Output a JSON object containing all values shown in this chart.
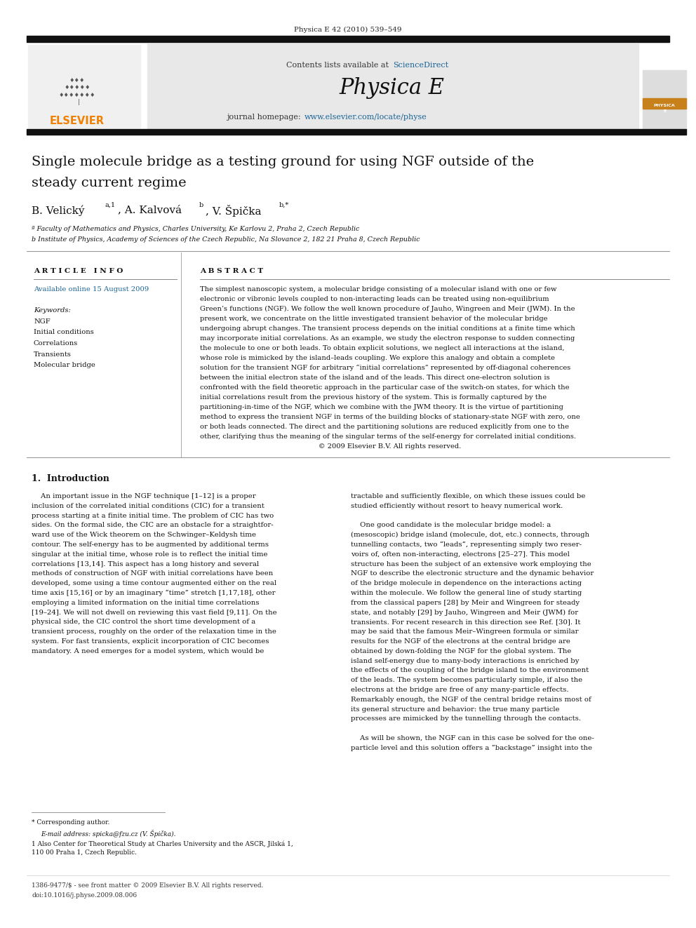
{
  "page_width": 9.92,
  "page_height": 13.23,
  "bg_color": "#ffffff",
  "journal_ref": "Physica E 42 (2010) 539–549",
  "header_bg": "#e8e8e8",
  "contents_text": "Contents lists available at ",
  "sciencedirect_text": "ScienceDirect",
  "sciencedirect_color": "#1a6496",
  "journal_name": "Physica E",
  "homepage_text": "journal homepage: ",
  "homepage_url": "www.elsevier.com/locate/physe",
  "homepage_url_color": "#1a6496",
  "keywords": [
    "NGF",
    "Initial conditions",
    "Correlations",
    "Transients",
    "Molecular bridge"
  ],
  "footer_text": "1386-9477/$ - see front matter © 2009 Elsevier B.V. All rights reserved.\ndoi:10.1016/j.physe.2009.08.006",
  "elsevier_color": "#f08000",
  "link_color": "#1a6496"
}
